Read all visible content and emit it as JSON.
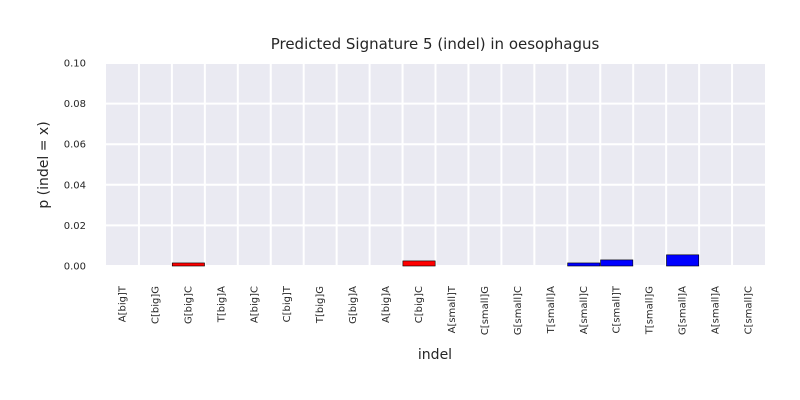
{
  "chart_data": {
    "type": "bar",
    "title": "Predicted Signature 5 (indel) in oesophagus",
    "xlabel": "indel",
    "ylabel": "p (indel = x)",
    "ylim": [
      0,
      0.1
    ],
    "yticks": [
      "0.00",
      "0.02",
      "0.04",
      "0.06",
      "0.08",
      "0.10"
    ],
    "grid": true,
    "categories": [
      "A[big]T",
      "C[big]G",
      "G[big]C",
      "T[big]A",
      "A[big]C",
      "C[big]T",
      "T[big]G",
      "G[big]A",
      "A[big]A",
      "C[big]C",
      "A[small]T",
      "C[small]G",
      "G[small]C",
      "T[small]A",
      "A[small]C",
      "C[small]T",
      "T[small]G",
      "G[small]A",
      "A[small]A",
      "C[small]C"
    ],
    "values": [
      0,
      0,
      0.0015,
      0,
      0,
      0,
      0,
      0,
      0,
      0.0025,
      0,
      0,
      0,
      0,
      0.0015,
      0.003,
      0,
      0.0055,
      0,
      0
    ],
    "bar_colors": [
      "#ff0000",
      "#ff0000",
      "#ff0000",
      "#ff0000",
      "#ff0000",
      "#ff0000",
      "#ff0000",
      "#ff0000",
      "#ff0000",
      "#ff0000",
      "#0000ff",
      "#0000ff",
      "#0000ff",
      "#0000ff",
      "#0000ff",
      "#0000ff",
      "#0000ff",
      "#0000ff",
      "#0000ff",
      "#0000ff"
    ],
    "colors": {
      "plot_background": "#eaeaf2",
      "grid": "#ffffff",
      "bar_edge": "#000000"
    }
  }
}
